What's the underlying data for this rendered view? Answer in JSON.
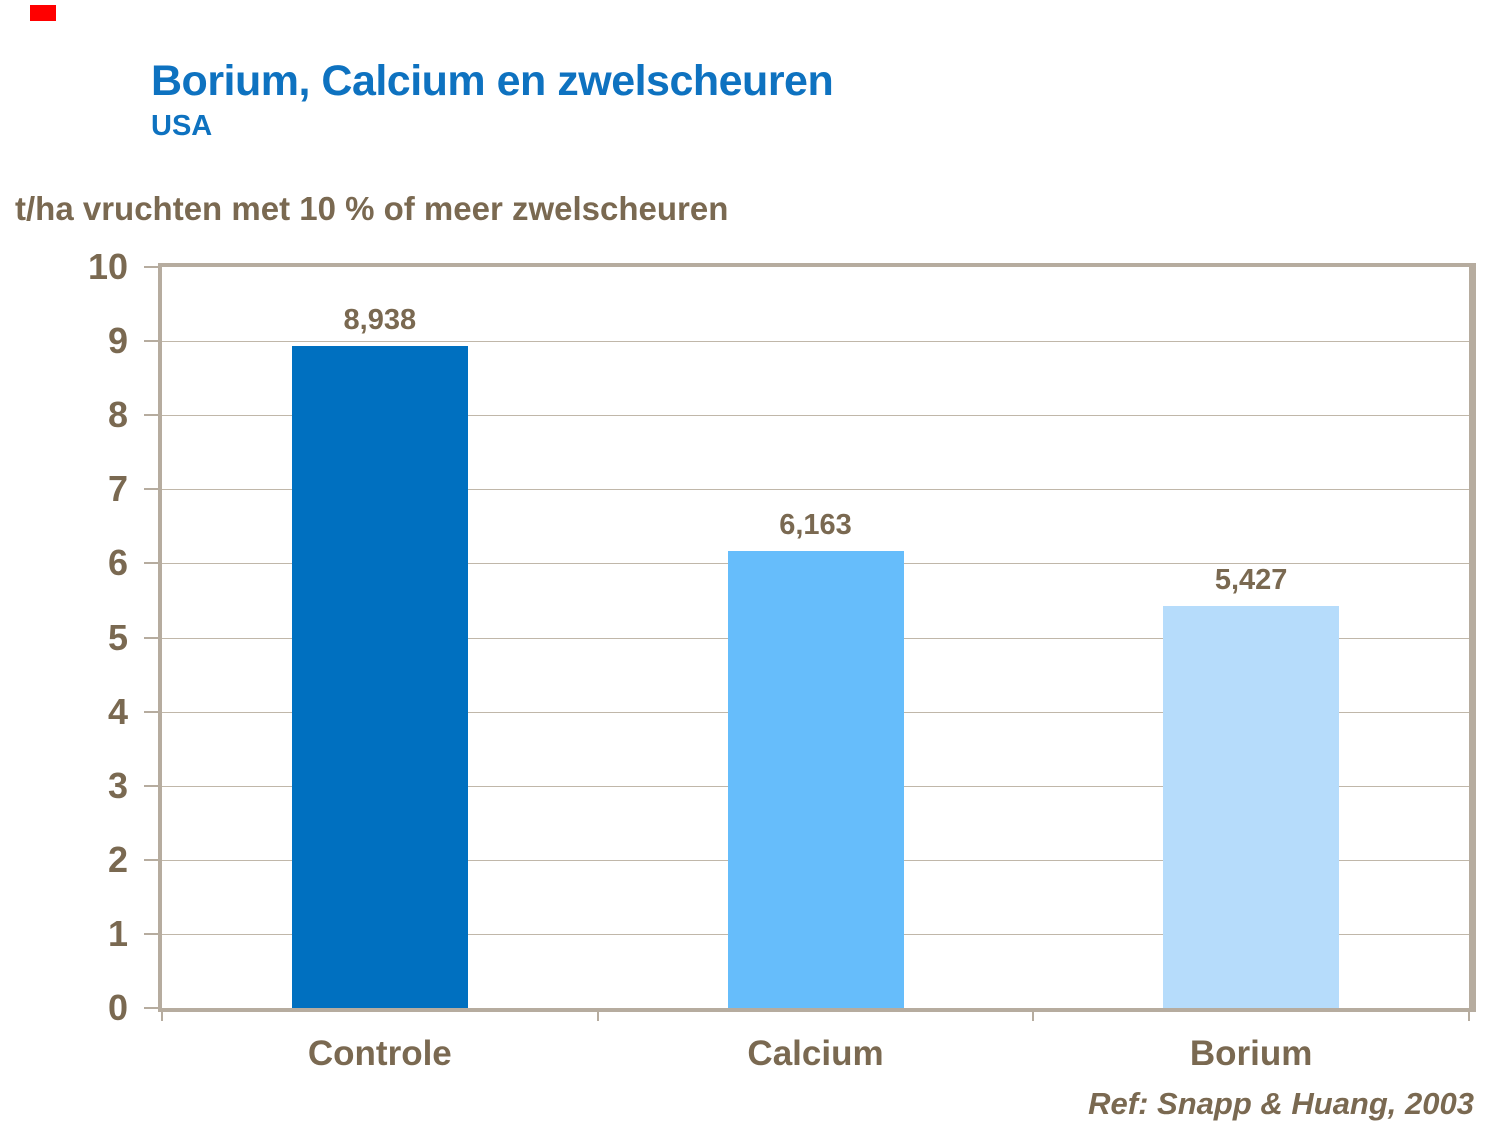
{
  "slide": {
    "marker_color": "#FF0000",
    "title": "Borium, Calcium en zwelscheuren",
    "subtitle": "USA",
    "title_color": "#0E72C0",
    "text_color": "#7A6951",
    "background": "#FFFFFF",
    "reference": "Ref: Snapp & Huang, 2003"
  },
  "chart_data": {
    "type": "bar",
    "title": "t/ha vruchten met 10 % of meer zwelscheuren",
    "ylabel": "t/ha vruchten met 10 % of meer zwelscheuren",
    "xlabel": "",
    "categories": [
      "Controle",
      "Calcium",
      "Borium"
    ],
    "values": [
      8.938,
      6.163,
      5.427
    ],
    "value_labels": [
      "8,938",
      "6,163",
      "5,427"
    ],
    "bar_colors": [
      "#0070C0",
      "#66BDFB",
      "#B6DCFB"
    ],
    "ylim": [
      0,
      10
    ],
    "yticks": [
      0,
      1,
      2,
      3,
      4,
      5,
      6,
      7,
      8,
      9,
      10
    ],
    "grid": true,
    "gridline_color": "#C0B7A9",
    "frame_color": "#B6AC9F",
    "legend": "none"
  }
}
